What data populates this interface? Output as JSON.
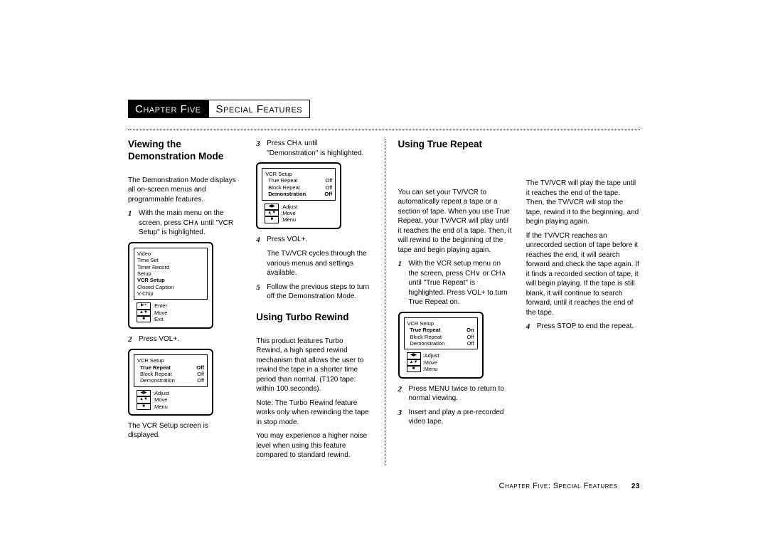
{
  "chapter_tab": {
    "dark": "Chapter Five",
    "light": "Special Features"
  },
  "footer": {
    "text": "Chapter Five: Special Features",
    "page": "23"
  },
  "col1": {
    "h1": "Viewing the Demonstration Mode",
    "p1": "The Demonstration Mode displays all on-screen menus and programmable features.",
    "s1": "With the main menu on the screen, press CH∧ until \"VCR Setup\" is highlighted.",
    "s2": "Press VOL+.",
    "p2": "The VCR Setup screen is displayed.",
    "osd1": {
      "items": [
        "Video",
        "Time Set",
        "Timer Record",
        "Setup"
      ],
      "bold": "VCR Setup",
      "after": [
        "Closed Caption",
        "V-Chip"
      ],
      "hints": [
        [
          "▶+",
          "Enter"
        ],
        [
          "▲▼",
          "Move"
        ],
        [
          "■",
          "Exit"
        ]
      ]
    },
    "osd2": {
      "title": "VCR Setup",
      "rows": [
        [
          "True Repeat",
          "Off"
        ],
        [
          "Block Repeat",
          "Off"
        ],
        [
          "Demonstration",
          "Off"
        ]
      ],
      "bold_row": 0,
      "hints": [
        [
          "◀▶",
          "Adjust"
        ],
        [
          "▲▼",
          "Move"
        ],
        [
          "■",
          "Menu"
        ]
      ]
    }
  },
  "col2": {
    "s3": "Press CH∧ until \"Demonstration\" is highlighted.",
    "s4": "Press VOL+.",
    "p4a": "The TV/VCR cycles through the various menus and settings available.",
    "s5": "Follow the previous steps to turn off the Demonstration Mode.",
    "h2": "Using Turbo Rewind",
    "p5": "This product features Turbo Rewind, a high speed rewind mechanism that allows the user to rewind the tape in a shorter time period than normal. (T120 tape: within 100 seconds).",
    "p6": "Note: The Turbo Rewind feature works only when rewinding the tape in stop mode.",
    "p7": "You may experience a higher noise level when using this feature compared to standard rewind.",
    "osd3": {
      "title": "VCR Setup",
      "rows": [
        [
          "True Repeat",
          "Off"
        ],
        [
          "Block Repeat",
          "Off"
        ],
        [
          "Demonstration",
          "Off"
        ]
      ],
      "bold_row": 2,
      "hints": [
        [
          "◀▶",
          "Adjust"
        ],
        [
          "▲▼",
          "Move"
        ],
        [
          "■",
          "Menu"
        ]
      ]
    }
  },
  "col3": {
    "h1": "Using True Repeat",
    "p1": "You can set your TV/VCR to automatically repeat a tape or a section of tape. When you use True Repeat, your TV/VCR will play until it reaches the end of a tape. Then, it will rewind to the beginning of the tape and begin playing again.",
    "s1": "With the VCR setup menu on the screen, press CH∨ or CH∧ until \"True Repeat\" is highlighted. Press VOL+ to turn True Repeat on.",
    "s2": "Press MENU twice to return to normal viewing.",
    "s3": "Insert and play a pre-recorded video tape.",
    "osd4": {
      "title": "VCR Setup",
      "rows": [
        [
          "True Repeat",
          "On"
        ],
        [
          "Block Repeat",
          "Off"
        ],
        [
          "Demonstration",
          "Off"
        ]
      ],
      "bold_row": 0,
      "hints": [
        [
          "◀▶",
          "Adjust"
        ],
        [
          "▲▼",
          "Move"
        ],
        [
          "■",
          "Menu"
        ]
      ]
    }
  },
  "col4": {
    "p1": "The TV/VCR will play the tape until it reaches the end of the tape. Then, the TV/VCR will stop the tape, rewind it to the beginning, and begin playing again.",
    "p2": "If the TV/VCR reaches an unrecorded section of tape before it reaches the end, it will search forward and check the tape again. If it finds a recorded section of tape, it will begin playing. If the tape is still blank, it will continue to search forward, until it reaches the end of the tape.",
    "s4": "Press STOP to end the repeat."
  }
}
